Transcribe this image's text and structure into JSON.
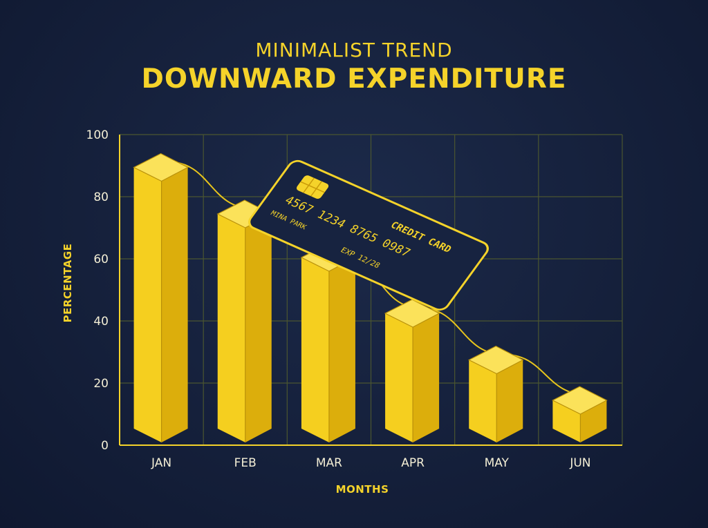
{
  "title": {
    "subtitle": "MINIMALIST TREND",
    "main": "DOWNWARD EXPENDITURE"
  },
  "colors": {
    "background": "#15203b",
    "accent": "#f5d32a",
    "bar_front": "#f5cf1f",
    "bar_side": "#dcae0c",
    "bar_top": "#fbe25a",
    "grid": "#4b5630"
  },
  "chart_data": {
    "type": "bar",
    "categories": [
      "JAN",
      "FEB",
      "MAR",
      "APR",
      "MAY",
      "JUN"
    ],
    "values": [
      85,
      70,
      56,
      38,
      23,
      10
    ],
    "xlabel": "MONTHS",
    "ylabel": "PERCENTAGE",
    "ylim": [
      0,
      100
    ],
    "yticks": [
      0,
      20,
      40,
      60,
      80,
      100
    ],
    "grid": true,
    "trend_line": true
  },
  "card": {
    "number": "4567  1234  8765  0987",
    "label": "CREDIT CARD",
    "holder": "MINA PARK",
    "expiry": "EXP 12/28"
  }
}
